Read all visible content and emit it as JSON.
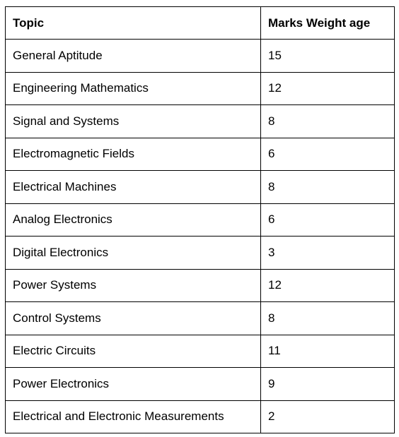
{
  "table": {
    "headers": [
      "Topic",
      "Marks Weight age"
    ],
    "rows": [
      [
        "General Aptitude",
        "15"
      ],
      [
        "Engineering Mathematics",
        "12"
      ],
      [
        "Signal and Systems",
        "8"
      ],
      [
        "Electromagnetic Fields",
        "6"
      ],
      [
        "Electrical Machines",
        "8"
      ],
      [
        "Analog Electronics",
        "6"
      ],
      [
        "Digital Electronics",
        "3"
      ],
      [
        "Power Systems",
        "12"
      ],
      [
        "Control Systems",
        "8"
      ],
      [
        "Electric Circuits",
        "11"
      ],
      [
        "Power Electronics",
        "9"
      ],
      [
        "Electrical and Electronic Measurements",
        "2"
      ]
    ]
  }
}
